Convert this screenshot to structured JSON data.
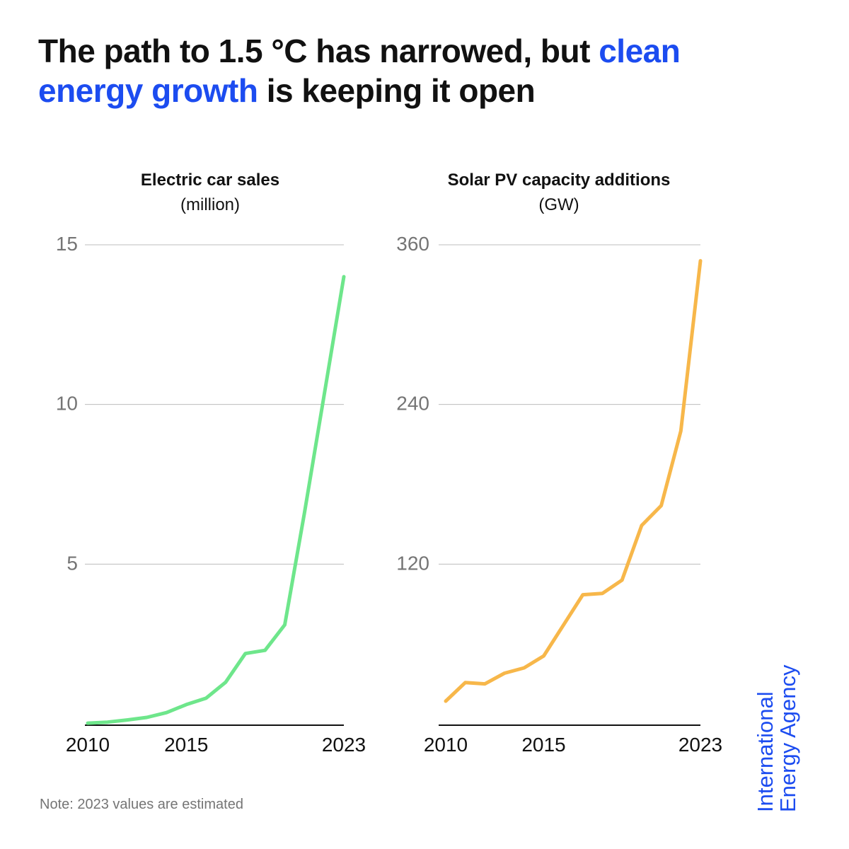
{
  "headline": {
    "part1": "The path to 1.5 °C has narrowed, but ",
    "accent": "clean energy growth",
    "part2": " is keeping it open",
    "accent_color": "#1c4cf0"
  },
  "chart_data": [
    {
      "type": "line",
      "title": "Electric car sales",
      "subtitle": "(million)",
      "x": [
        2010,
        2011,
        2012,
        2013,
        2014,
        2015,
        2016,
        2017,
        2018,
        2019,
        2020,
        2021,
        2022,
        2023
      ],
      "series": [
        {
          "values": [
            0.02,
            0.05,
            0.12,
            0.2,
            0.35,
            0.6,
            0.8,
            1.3,
            2.2,
            2.3,
            3.1,
            6.6,
            10.3,
            14.0
          ],
          "color": "#6ee68b"
        }
      ],
      "ylim": [
        0,
        15
      ],
      "yticks": [
        5,
        10,
        15
      ],
      "xticks": [
        2010,
        2015,
        2023
      ],
      "grid": true
    },
    {
      "type": "line",
      "title": "Solar PV capacity additions",
      "subtitle": "(GW)",
      "x": [
        2010,
        2011,
        2012,
        2013,
        2014,
        2015,
        2016,
        2017,
        2018,
        2019,
        2020,
        2021,
        2022,
        2023
      ],
      "series": [
        {
          "values": [
            17,
            31,
            30,
            38,
            42,
            51,
            74,
            97,
            98,
            108,
            149,
            164,
            220,
            348
          ],
          "color": "#f7b74a"
        }
      ],
      "ylim": [
        0,
        360
      ],
      "yticks": [
        120,
        240,
        360
      ],
      "xticks": [
        2010,
        2015,
        2023
      ],
      "grid": true
    }
  ],
  "note": "Note: 2023 values are estimated",
  "brand": {
    "line1": "International",
    "line2": "Energy Agency",
    "color": "#1c4cf0"
  }
}
